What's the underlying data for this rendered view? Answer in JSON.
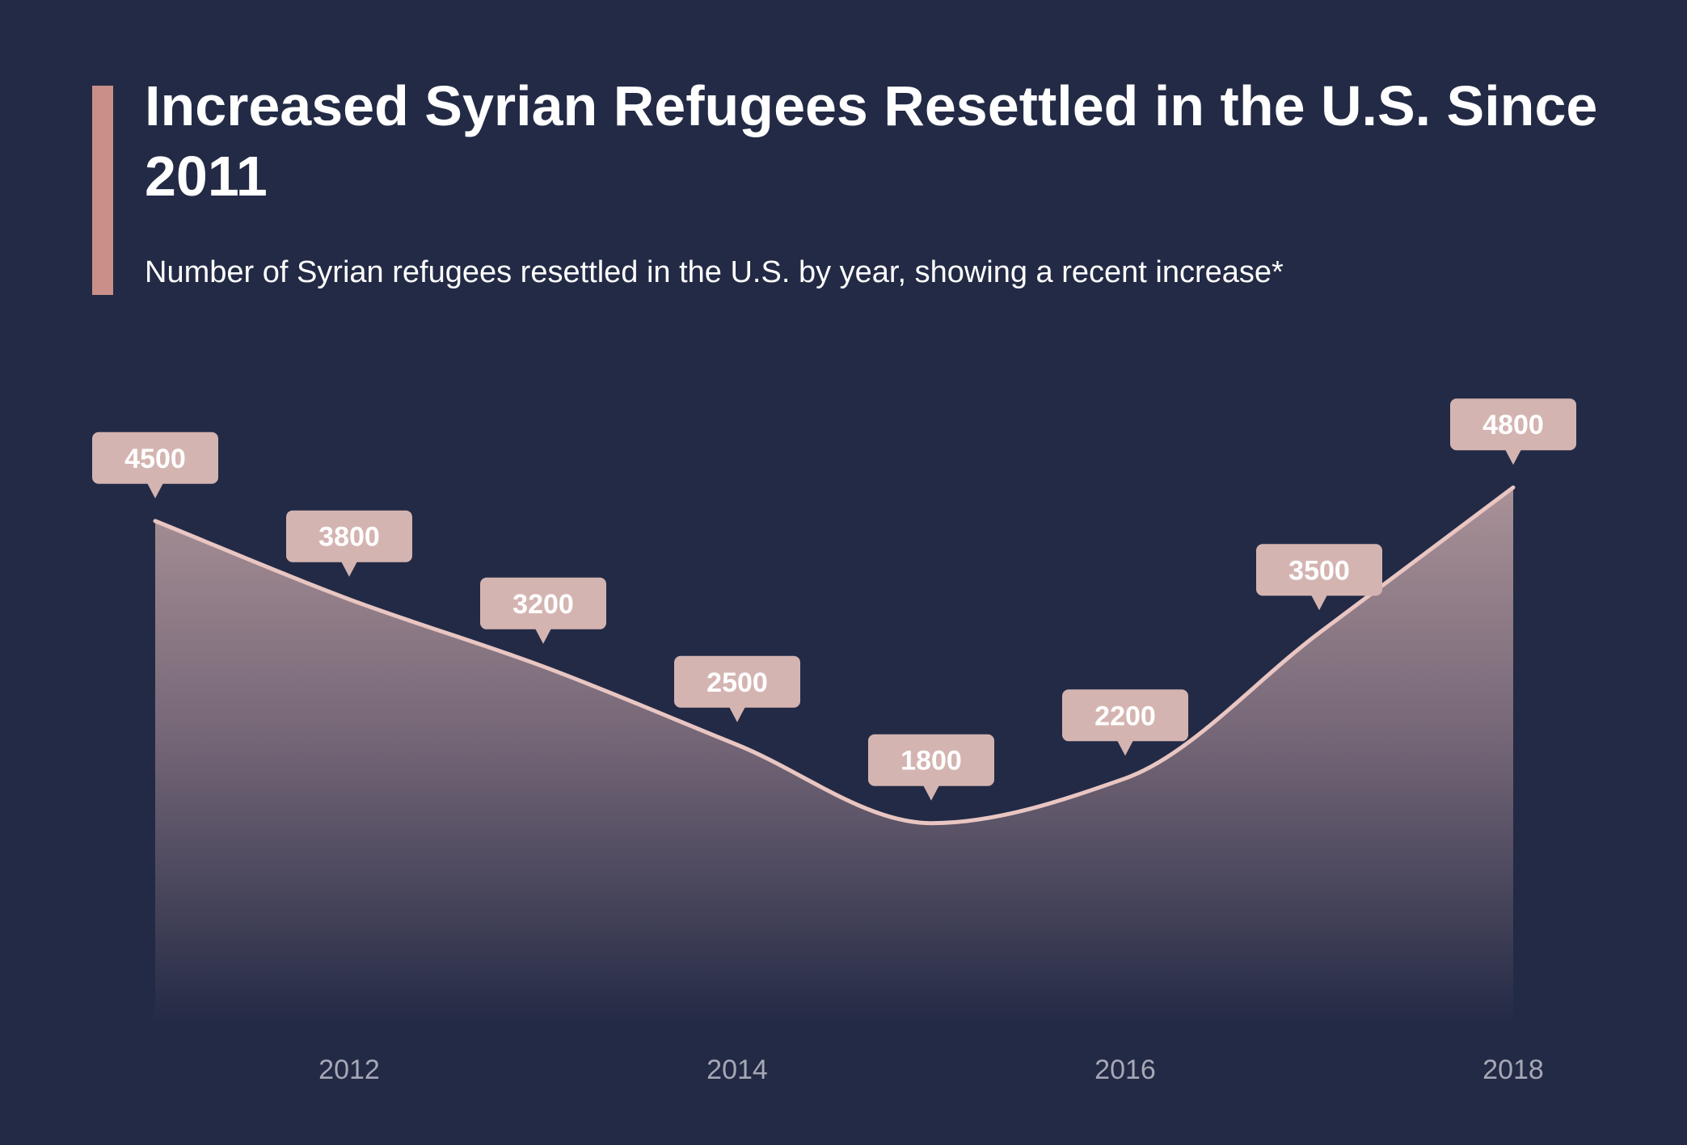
{
  "header": {
    "title": "Increased Syrian Refugees Resettled in the U.S. Since 2011",
    "subtitle": "Number of Syrian refugees resettled in the U.S. by year, showing a recent increase*"
  },
  "colors": {
    "background": "#232a45",
    "accent": "#c98f88",
    "line": "#e9c6c2",
    "label_box": "#d4b4b1",
    "tick_text": "#a6a8b6"
  },
  "chart_data": {
    "type": "area",
    "x": [
      2011,
      2012,
      2013,
      2014,
      2015,
      2016,
      2017,
      2018
    ],
    "values": [
      4500,
      3800,
      3200,
      2500,
      1800,
      2200,
      3500,
      4800
    ],
    "data_labels": [
      "4500",
      "3800",
      "3200",
      "2500",
      "1800",
      "2200",
      "3500",
      "4800"
    ],
    "x_ticks": [
      2012,
      2014,
      2016,
      2018
    ],
    "x_tick_labels": [
      "2012",
      "2014",
      "2016",
      "2018"
    ],
    "xlim": [
      2011,
      2018
    ],
    "ylim": [
      0,
      5200
    ],
    "grid": false,
    "legend": "none",
    "curve": "smooth"
  }
}
